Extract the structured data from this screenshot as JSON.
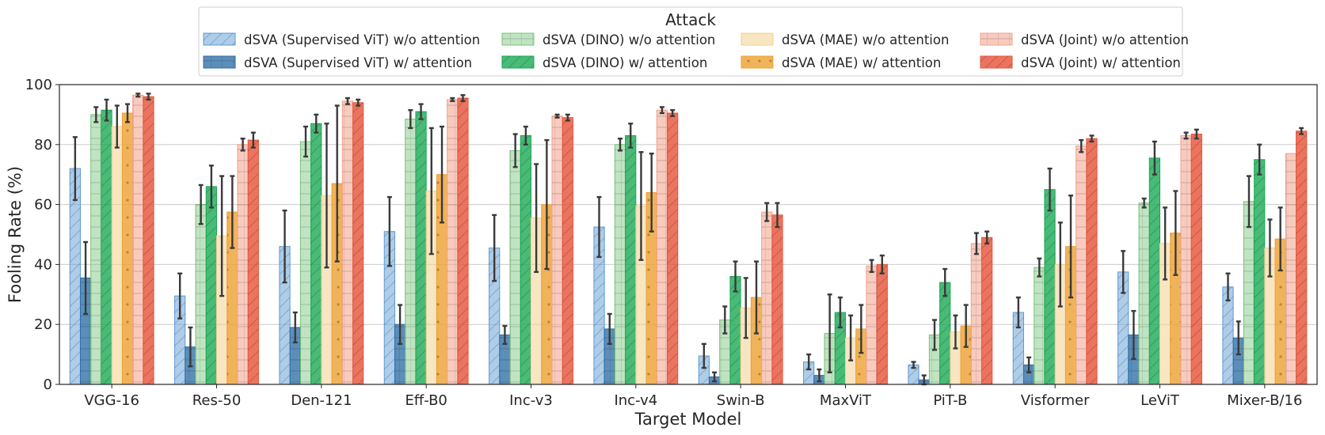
{
  "chart_data": {
    "type": "bar",
    "xlabel": "Target Model",
    "ylabel": "Fooling Rate (%)",
    "ylim": [
      0,
      100
    ],
    "yticks": [
      0,
      20,
      40,
      60,
      80,
      100
    ],
    "grid": "horizontal",
    "legend": {
      "title": "Attack",
      "placement": "top-center",
      "columns": 4
    },
    "categories": [
      "VGG-16",
      "Res-50",
      "Den-121",
      "Eff-B0",
      "Inc-v3",
      "Inc-v4",
      "Swin-B",
      "MaxViT",
      "PiT-B",
      "Visformer",
      "LeViT",
      "Mixer-B/16"
    ],
    "series": [
      {
        "name": "dSVA (Supervised ViT) w/o attention",
        "color": "#5b9bd5",
        "alpha": 0.5,
        "hatch": "diag",
        "values": [
          72,
          29.5,
          46,
          51,
          45.5,
          52.5,
          9.5,
          7.5,
          6.5,
          24,
          37.5,
          32.5
        ],
        "err": [
          10.5,
          7.5,
          12,
          11.5,
          11,
          10,
          4,
          2.5,
          1,
          5,
          7,
          4.5
        ]
      },
      {
        "name": "dSVA (Supervised ViT) w/ attention",
        "color": "#2e6ea6",
        "alpha": 0.78,
        "hatch": "grid",
        "values": [
          35.5,
          12.5,
          19,
          20,
          16.5,
          18.5,
          2.5,
          3,
          1.5,
          6.5,
          16.5,
          15.5
        ],
        "err": [
          12,
          6.5,
          5,
          6.5,
          3,
          5,
          1.5,
          2,
          1.5,
          2.5,
          8,
          5.5
        ]
      },
      {
        "name": "dSVA (DINO) w/o attention",
        "color": "#74c476",
        "alpha": 0.45,
        "hatch": "grid",
        "values": [
          90,
          60,
          81,
          88.5,
          78,
          80,
          21.5,
          17,
          16.5,
          39,
          60.5,
          61
        ],
        "err": [
          2.5,
          6.5,
          5,
          3,
          5.5,
          2,
          4.5,
          13,
          5,
          3,
          1.5,
          8.5
        ]
      },
      {
        "name": "dSVA (DINO) w/ attention",
        "color": "#1aaa55",
        "alpha": 0.8,
        "hatch": "diag",
        "values": [
          91.5,
          66,
          87,
          91,
          83,
          83,
          36,
          24,
          34,
          65,
          75.5,
          75
        ],
        "err": [
          3.5,
          7,
          3,
          2.5,
          3,
          4,
          5,
          5,
          4.5,
          7,
          5.5,
          5
        ]
      },
      {
        "name": "dSVA (MAE) w/o attention",
        "color": "#f2cf8f",
        "alpha": 0.55,
        "hatch": "none",
        "values": [
          86,
          49.5,
          63,
          64.5,
          55.5,
          59.5,
          25.5,
          15.5,
          17.5,
          40,
          47,
          45.5
        ],
        "err": [
          7,
          20,
          24,
          21,
          18,
          18,
          10,
          7.5,
          5.5,
          14,
          12,
          9.5
        ]
      },
      {
        "name": "dSVA (MAE) w/ attention",
        "color": "#eea030",
        "alpha": 0.8,
        "hatch": "dots",
        "values": [
          90.5,
          57.5,
          67,
          70,
          60,
          64,
          29,
          18.5,
          19.5,
          46,
          50.5,
          48.5
        ],
        "err": [
          3,
          12,
          26,
          16,
          21.5,
          13,
          12,
          8,
          7,
          17,
          14,
          10.5
        ]
      },
      {
        "name": "dSVA (Joint) w/o attention",
        "color": "#f4a08a",
        "alpha": 0.55,
        "hatch": "grid",
        "values": [
          96.5,
          80,
          94.5,
          95,
          89.5,
          91.5,
          57.5,
          39.5,
          47,
          79.5,
          83,
          77
        ],
        "err": [
          0.5,
          2,
          1,
          0.5,
          0.5,
          1,
          3,
          2,
          3.5,
          2,
          1,
          0
        ]
      },
      {
        "name": "dSVA (Joint) w/ attention",
        "color": "#e8553a",
        "alpha": 0.82,
        "hatch": "diag",
        "values": [
          96,
          81.5,
          94,
          95.5,
          89,
          90.5,
          56.5,
          40,
          49,
          82,
          83.5,
          84.5
        ],
        "err": [
          1,
          2.5,
          1,
          1,
          1,
          1,
          4,
          3,
          2,
          1,
          1.5,
          1
        ]
      }
    ]
  }
}
